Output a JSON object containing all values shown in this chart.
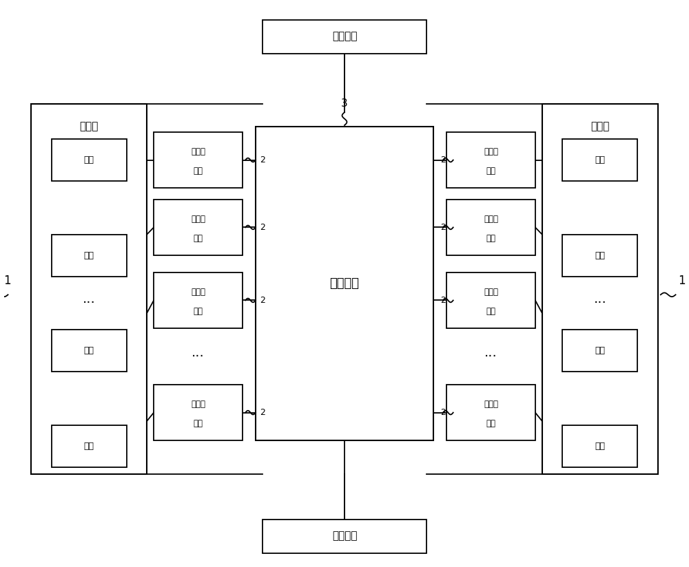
{
  "fig_width": 10.0,
  "fig_height": 8.24,
  "bg_color": "#ffffff",
  "line_color": "#000000",
  "title_top": "输出正极",
  "title_bottom": "输出负极",
  "main_module_label": "主控模块",
  "label_1": "1",
  "label_3": "3",
  "left_group_label": "电芯组",
  "right_group_label": "电芯组",
  "cell_label": "电芯",
  "sensor_line1": "压力传",
  "sensor_line2": "感器",
  "label_2": "2",
  "dots": "···"
}
